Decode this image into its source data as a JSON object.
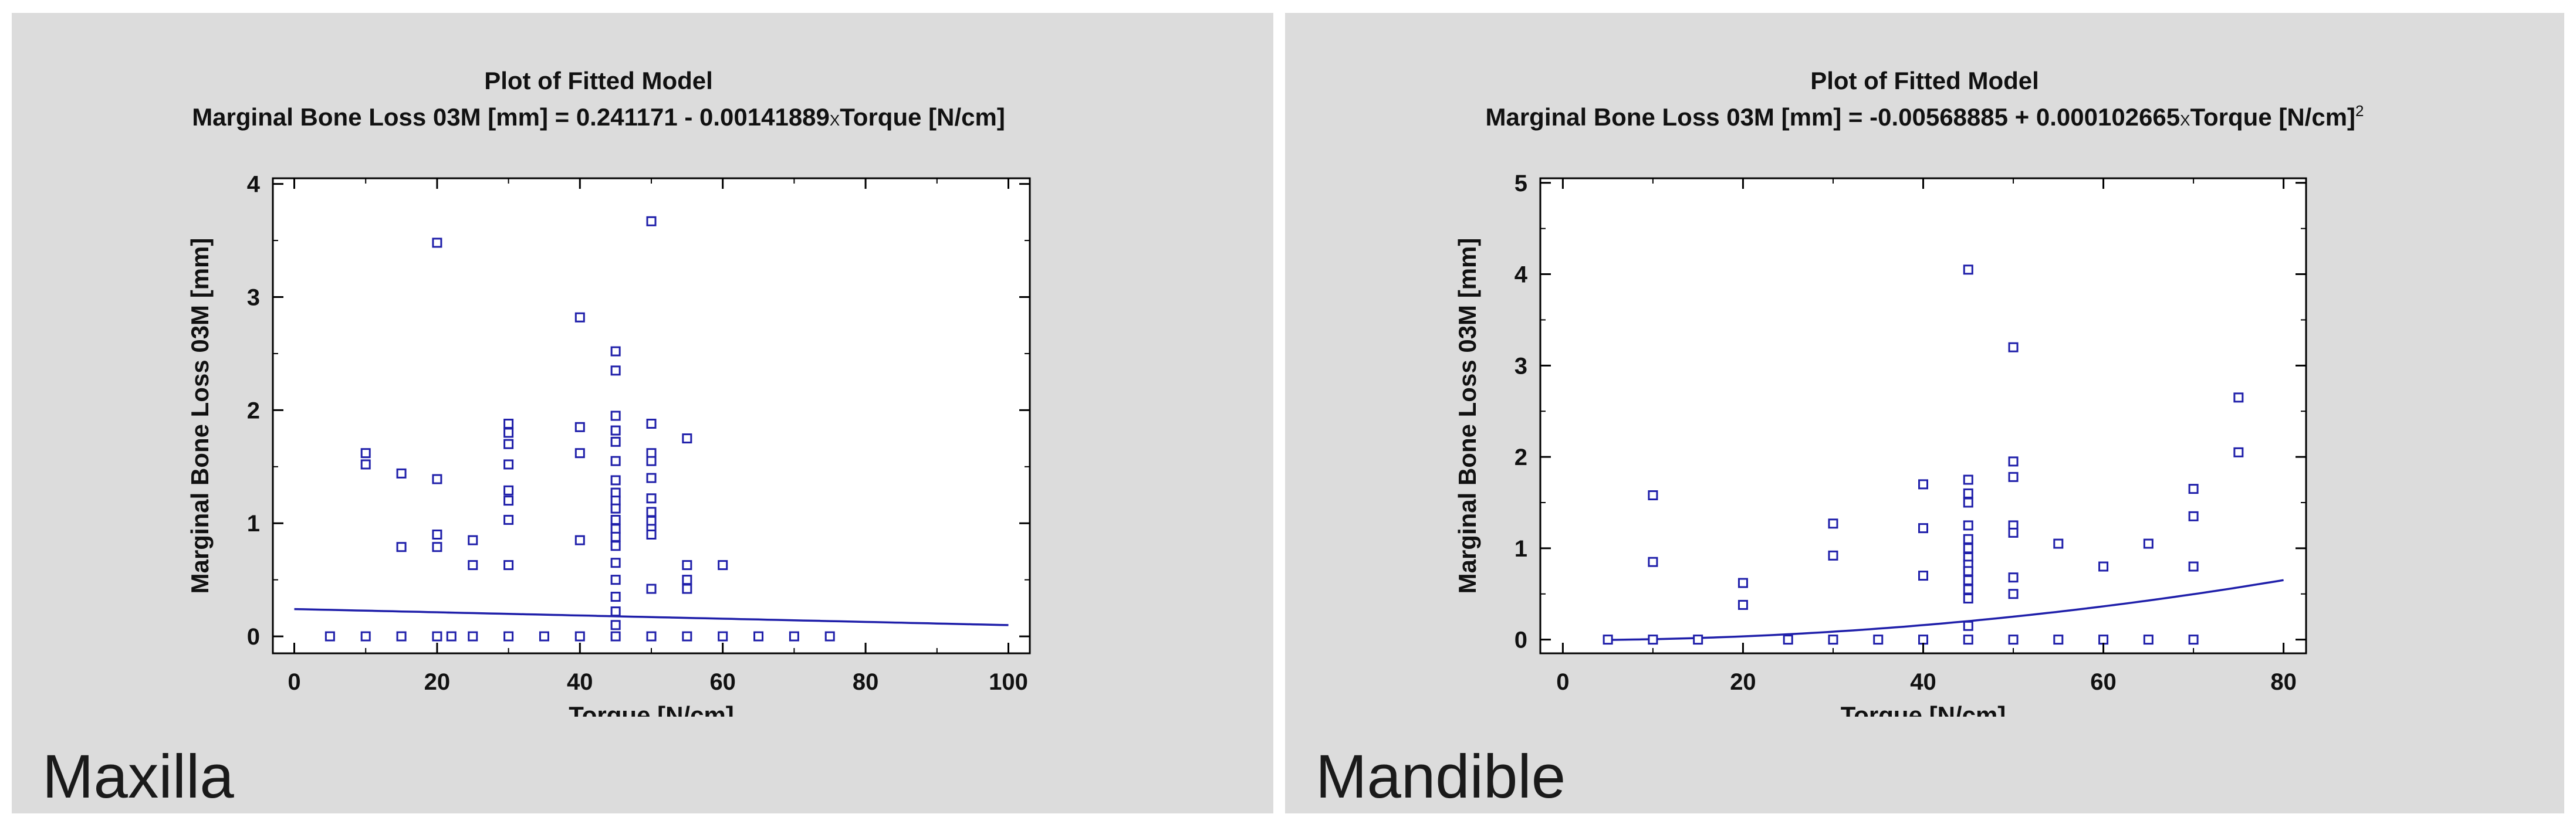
{
  "panels": [
    {
      "label": "Maxilla",
      "background": "#dcdcdc",
      "chart_data": {
        "type": "scatter",
        "title": "Plot of Fitted Model",
        "subtitle_parts": [
          "Marginal Bone Loss 03M [mm] = 0.241171 - 0.00141889",
          "X",
          "Torque [N/cm]",
          ""
        ],
        "xlabel": "Torque [N/cm]",
        "ylabel": "Marginal Bone Loss 03M [mm]",
        "xlim": [
          -3,
          103
        ],
        "ylim": [
          -0.15,
          4.05
        ],
        "xticks": [
          0,
          20,
          40,
          60,
          80,
          100
        ],
        "xtick_labels": [
          "0",
          "20",
          "40",
          "60",
          "80",
          "100"
        ],
        "yticks": [
          0,
          1,
          2,
          3,
          4
        ],
        "ytick_labels": [
          "0",
          "1",
          "2",
          "3",
          "4"
        ],
        "grid": false,
        "marker_color": "#1f1faa",
        "fit": {
          "model": "linear",
          "intercept": 0.241171,
          "slope": -0.00141889,
          "x_range": [
            0,
            100
          ]
        },
        "points": [
          [
            5,
            0
          ],
          [
            10,
            0
          ],
          [
            10,
            1.52
          ],
          [
            10,
            1.62
          ],
          [
            15,
            0
          ],
          [
            15,
            1.44
          ],
          [
            15,
            0.79
          ],
          [
            20,
            0
          ],
          [
            20,
            3.48
          ],
          [
            20,
            1.39
          ],
          [
            20,
            0.9
          ],
          [
            20,
            0.79
          ],
          [
            22,
            0
          ],
          [
            25,
            0
          ],
          [
            25,
            0.85
          ],
          [
            25,
            0.63
          ],
          [
            30,
            0
          ],
          [
            30,
            1.88
          ],
          [
            30,
            1.8
          ],
          [
            30,
            1.7
          ],
          [
            30,
            1.52
          ],
          [
            30,
            1.29
          ],
          [
            30,
            1.2
          ],
          [
            30,
            1.03
          ],
          [
            30,
            0.63
          ],
          [
            35,
            0
          ],
          [
            40,
            0
          ],
          [
            40,
            2.82
          ],
          [
            40,
            1.85
          ],
          [
            40,
            1.62
          ],
          [
            40,
            0.85
          ],
          [
            45,
            0
          ],
          [
            45,
            2.52
          ],
          [
            45,
            2.35
          ],
          [
            45,
            1.95
          ],
          [
            45,
            1.82
          ],
          [
            45,
            1.72
          ],
          [
            45,
            1.55
          ],
          [
            45,
            1.38
          ],
          [
            45,
            1.27
          ],
          [
            45,
            1.2
          ],
          [
            45,
            1.13
          ],
          [
            45,
            1.03
          ],
          [
            45,
            0.95
          ],
          [
            45,
            0.88
          ],
          [
            45,
            0.8
          ],
          [
            45,
            0.65
          ],
          [
            45,
            0.5
          ],
          [
            45,
            0.35
          ],
          [
            45,
            0.22
          ],
          [
            45,
            0.1
          ],
          [
            50,
            0
          ],
          [
            50,
            3.67
          ],
          [
            50,
            1.88
          ],
          [
            50,
            1.62
          ],
          [
            50,
            1.55
          ],
          [
            50,
            1.4
          ],
          [
            50,
            1.22
          ],
          [
            50,
            1.1
          ],
          [
            50,
            1.02
          ],
          [
            50,
            0.95
          ],
          [
            50,
            0.9
          ],
          [
            50,
            0.42
          ],
          [
            55,
            0
          ],
          [
            55,
            1.75
          ],
          [
            55,
            0.63
          ],
          [
            55,
            0.5
          ],
          [
            55,
            0.42
          ],
          [
            60,
            0
          ],
          [
            60,
            0.63
          ],
          [
            65,
            0
          ],
          [
            70,
            0
          ],
          [
            75,
            0
          ]
        ]
      }
    },
    {
      "label": "Mandible",
      "background": "#dcdcdc",
      "chart_data": {
        "type": "scatter",
        "title": "Plot of Fitted Model",
        "subtitle_parts": [
          "Marginal Bone Loss 03M [mm] = -0.00568885 + 0.000102665",
          "X",
          "Torque [N/cm]",
          "2"
        ],
        "xlabel": "Torque [N/cm]",
        "ylabel": "Marginal Bone Loss 03M [mm]",
        "xlim": [
          -2.5,
          82.5
        ],
        "ylim": [
          -0.15,
          5.05
        ],
        "xticks": [
          0,
          20,
          40,
          60,
          80
        ],
        "xtick_labels": [
          "0",
          "20",
          "40",
          "60",
          "80"
        ],
        "yticks": [
          0,
          1,
          2,
          3,
          4,
          5
        ],
        "ytick_labels": [
          "0",
          "1",
          "2",
          "3",
          "4",
          "5"
        ],
        "grid": false,
        "marker_color": "#1f1faa",
        "fit": {
          "model": "quadratic",
          "intercept": -0.00568885,
          "coefficient": 0.000102665,
          "x_range": [
            5,
            80
          ]
        },
        "points": [
          [
            5,
            0
          ],
          [
            10,
            0
          ],
          [
            10,
            1.58
          ],
          [
            10,
            0.85
          ],
          [
            15,
            0
          ],
          [
            20,
            0.62
          ],
          [
            20,
            0.38
          ],
          [
            25,
            0
          ],
          [
            30,
            0
          ],
          [
            30,
            1.27
          ],
          [
            30,
            0.92
          ],
          [
            35,
            0
          ],
          [
            40,
            0
          ],
          [
            40,
            1.7
          ],
          [
            40,
            1.22
          ],
          [
            40,
            0.7
          ],
          [
            45,
            0
          ],
          [
            45,
            4.05
          ],
          [
            45,
            1.75
          ],
          [
            45,
            1.6
          ],
          [
            45,
            1.5
          ],
          [
            45,
            1.25
          ],
          [
            45,
            1.1
          ],
          [
            45,
            1.0
          ],
          [
            45,
            0.9
          ],
          [
            45,
            0.82
          ],
          [
            45,
            0.75
          ],
          [
            45,
            0.65
          ],
          [
            45,
            0.55
          ],
          [
            45,
            0.45
          ],
          [
            45,
            0.15
          ],
          [
            50,
            0
          ],
          [
            50,
            3.2
          ],
          [
            50,
            1.95
          ],
          [
            50,
            1.78
          ],
          [
            50,
            1.25
          ],
          [
            50,
            1.17
          ],
          [
            50,
            0.68
          ],
          [
            50,
            0.5
          ],
          [
            55,
            0
          ],
          [
            55,
            1.05
          ],
          [
            60,
            0
          ],
          [
            60,
            0.8
          ],
          [
            65,
            0
          ],
          [
            65,
            1.05
          ],
          [
            70,
            0
          ],
          [
            70,
            1.65
          ],
          [
            70,
            1.35
          ],
          [
            70,
            0.8
          ],
          [
            75,
            2.65
          ],
          [
            75,
            2.05
          ]
        ]
      }
    }
  ]
}
